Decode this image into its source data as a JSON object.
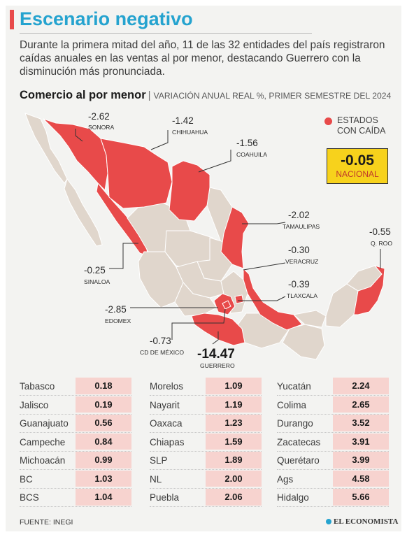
{
  "header": {
    "title": "Escenario negativo",
    "subtitle": "Durante la primera mitad del año, 11 de las 32 entidades del país registraron caídas anuales en las ventas al por menor, destacando Guerrero con la disminución más pronunciada."
  },
  "section": {
    "title": "Comercio al por menor",
    "separator": "|",
    "subtitle": "VARIACIÓN ANUAL REAL %, PRIMER SEMESTRE DEL 2024"
  },
  "legend": {
    "label": "ESTADOS CON CAÍDA",
    "color": "#e84a4a"
  },
  "national": {
    "value": "-0.05",
    "label": "NACIONAL",
    "color": "#f7d21c"
  },
  "colors": {
    "decline": "#e84a4a",
    "other": "#e0d6cc",
    "accent": "#25a3cf",
    "table_value_bg": "#f7d3cf"
  },
  "chart_data": {
    "type": "choropleth-map",
    "title": "Comercio al por menor",
    "subtitle": "VARIACIÓN ANUAL REAL %, PRIMER SEMESTRE DEL 2024",
    "declining_states": [
      {
        "state": "SONORA",
        "value": -2.62,
        "label": "-2.62"
      },
      {
        "state": "CHIHUAHUA",
        "value": -1.42,
        "label": "-1.42"
      },
      {
        "state": "COAHUILA",
        "value": -1.56,
        "label": "-1.56"
      },
      {
        "state": "TAMAULIPAS",
        "value": -2.02,
        "label": "-2.02"
      },
      {
        "state": "Q. ROO",
        "value": -0.55,
        "label": "-0.55"
      },
      {
        "state": "VERACRUZ",
        "value": -0.3,
        "label": "-0.30"
      },
      {
        "state": "TLAXCALA",
        "value": -0.39,
        "label": "-0.39"
      },
      {
        "state": "SINALOA",
        "value": -0.25,
        "label": "-0.25"
      },
      {
        "state": "EDOMEX",
        "value": -2.85,
        "label": "-2.85"
      },
      {
        "state": "CD DE MÉXICO",
        "value": -0.73,
        "label": "-0.73"
      },
      {
        "state": "GUERRERO",
        "value": -14.47,
        "label": "-14.47"
      }
    ],
    "table": [
      [
        {
          "state": "Tabasco",
          "value": 0.18,
          "label": "0.18"
        },
        {
          "state": "Jalisco",
          "value": 0.19,
          "label": "0.19"
        },
        {
          "state": "Guanajuato",
          "value": 0.56,
          "label": "0.56"
        },
        {
          "state": "Campeche",
          "value": 0.84,
          "label": "0.84"
        },
        {
          "state": "Michoacán",
          "value": 0.99,
          "label": "0.99"
        },
        {
          "state": "BC",
          "value": 1.03,
          "label": "1.03"
        },
        {
          "state": "BCS",
          "value": 1.04,
          "label": "1.04"
        }
      ],
      [
        {
          "state": "Morelos",
          "value": 1.09,
          "label": "1.09"
        },
        {
          "state": "Nayarit",
          "value": 1.19,
          "label": "1.19"
        },
        {
          "state": "Oaxaca",
          "value": 1.23,
          "label": "1.23"
        },
        {
          "state": "Chiapas",
          "value": 1.59,
          "label": "1.59"
        },
        {
          "state": "SLP",
          "value": 1.89,
          "label": "1.89"
        },
        {
          "state": "NL",
          "value": 2.0,
          "label": "2.00"
        },
        {
          "state": "Puebla",
          "value": 2.06,
          "label": "2.06"
        }
      ],
      [
        {
          "state": "Yucatán",
          "value": 2.24,
          "label": "2.24"
        },
        {
          "state": "Colima",
          "value": 2.65,
          "label": "2.65"
        },
        {
          "state": "Durango",
          "value": 3.52,
          "label": "3.52"
        },
        {
          "state": "Zacatecas",
          "value": 3.91,
          "label": "3.91"
        },
        {
          "state": "Querétaro",
          "value": 3.99,
          "label": "3.99"
        },
        {
          "state": "Ags",
          "value": 4.58,
          "label": "4.58"
        },
        {
          "state": "Hidalgo",
          "value": 5.66,
          "label": "5.66"
        }
      ]
    ]
  },
  "footer": {
    "source": "FUENTE: INEGI",
    "brand": "EL ECONOMISTA",
    "brand_icon": "globe-icon"
  }
}
